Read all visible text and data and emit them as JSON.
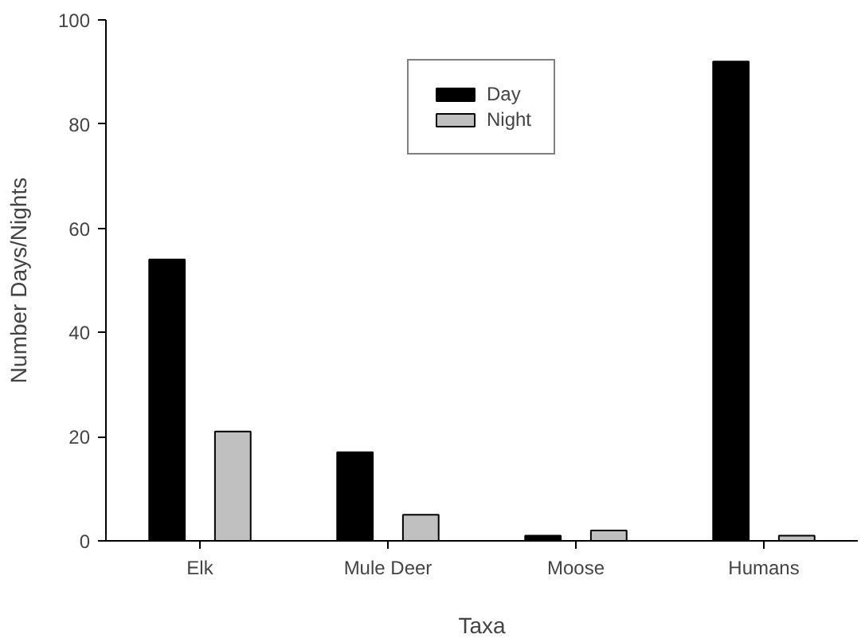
{
  "chart_data": {
    "type": "bar",
    "xlabel": "Taxa",
    "ylabel": "Number Days/Nights",
    "categories": [
      "Elk",
      "Mule Deer",
      "Moose",
      "Humans"
    ],
    "series": [
      {
        "name": "Day",
        "color": "#000000",
        "values": [
          54,
          17,
          1,
          92
        ]
      },
      {
        "name": "Night",
        "color": "#c0c0c0",
        "values": [
          21,
          5,
          2,
          1
        ]
      }
    ],
    "ylim": [
      0,
      100
    ],
    "yticks": [
      0,
      20,
      40,
      60,
      80,
      100
    ],
    "grid": false,
    "legend": "top"
  }
}
